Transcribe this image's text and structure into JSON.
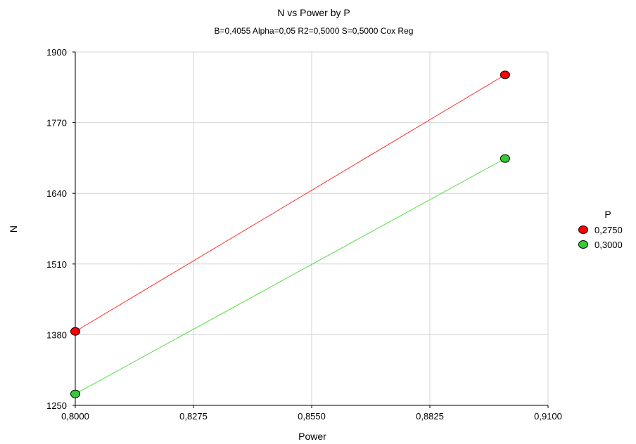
{
  "chart_data": {
    "type": "line",
    "title": "N vs Power by P",
    "subtitle": "B=0,4055 Alpha=0,05 R2=0,5000 S=0,5000 Cox Reg",
    "xlabel": "Power",
    "ylabel": "N",
    "xlim": [
      0.8,
      0.91
    ],
    "ylim": [
      1250,
      1900
    ],
    "x_ticks": [
      "0,8000",
      "0,8275",
      "0,8550",
      "0,8825",
      "0,9100"
    ],
    "y_ticks": [
      "1250",
      "1380",
      "1510",
      "1640",
      "1770",
      "1900"
    ],
    "grid": true,
    "legend": {
      "title": "P",
      "placement": "right"
    },
    "series": [
      {
        "name": "0,2750",
        "color": "#ff0000",
        "line_color": "#ff3030",
        "x": [
          0.8,
          0.9
        ],
        "y": [
          1386,
          1858
        ]
      },
      {
        "name": "0,3000",
        "color": "#33cc33",
        "line_color": "#55dd44",
        "x": [
          0.8,
          0.9
        ],
        "y": [
          1271,
          1704
        ]
      }
    ]
  }
}
